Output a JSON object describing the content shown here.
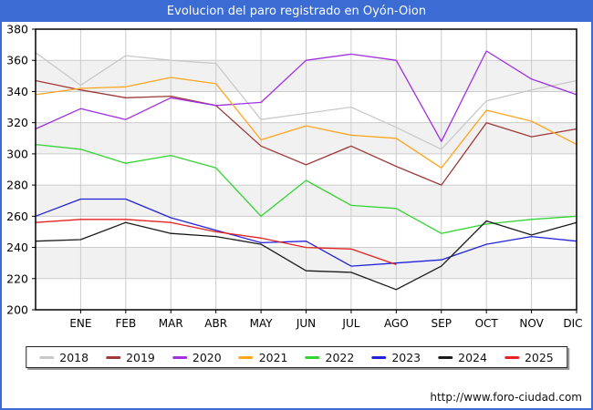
{
  "window": {
    "title": "Evolucion del paro registrado en Oyón-Oion",
    "footer_url": "http://www.foro-ciudad.com"
  },
  "chart_data": {
    "type": "line",
    "title": "Evolucion del paro registrado en Oyón-Oion",
    "xlabel": "",
    "ylabel": "",
    "x_labels": [
      "ENE",
      "FEB",
      "MAR",
      "ABR",
      "MAY",
      "JUN",
      "JUL",
      "AGO",
      "SEP",
      "OCT",
      "NOV",
      "DIC"
    ],
    "ylim": [
      200,
      380
    ],
    "y_ticks": [
      380,
      360,
      340,
      320,
      300,
      280,
      260,
      240,
      220,
      200
    ],
    "grid": true,
    "legend_position": "bottom",
    "point_note": "first value of each series is drawn on the y-axis (previous December), followed by ENE..DIC",
    "series": [
      {
        "name": "2018",
        "color": "#c9c9c9",
        "values": [
          365,
          344,
          363,
          360,
          358,
          322,
          326,
          330,
          317,
          303,
          334,
          341,
          347
        ]
      },
      {
        "name": "2019",
        "color": "#a03a3a",
        "values": [
          347,
          341,
          336,
          337,
          331,
          305,
          293,
          305,
          292,
          280,
          320,
          311,
          316
        ]
      },
      {
        "name": "2020",
        "color": "#a030e0",
        "values": [
          316,
          329,
          322,
          336,
          331,
          333,
          360,
          364,
          360,
          308,
          366,
          348,
          338
        ]
      },
      {
        "name": "2021",
        "color": "#ffa520",
        "values": [
          338,
          342,
          343,
          349,
          345,
          309,
          318,
          312,
          310,
          291,
          328,
          321,
          306
        ]
      },
      {
        "name": "2022",
        "color": "#33d433",
        "values": [
          306,
          303,
          294,
          299,
          291,
          260,
          283,
          267,
          265,
          249,
          255,
          258,
          260
        ]
      },
      {
        "name": "2023",
        "color": "#2222dd",
        "values": [
          260,
          271,
          271,
          259,
          251,
          243,
          244,
          228,
          230,
          232,
          242,
          247,
          244
        ]
      },
      {
        "name": "2024",
        "color": "#1a1a1a",
        "values": [
          244,
          245,
          256,
          249,
          247,
          242,
          225,
          224,
          213,
          228,
          257,
          248,
          256
        ]
      },
      {
        "name": "2025",
        "color": "#e62222",
        "values": [
          256,
          258,
          258,
          256,
          250,
          246,
          240,
          239,
          229
        ]
      }
    ],
    "style": {
      "band_color": "#f1f1f1",
      "gridline_color": "#cccccc",
      "axis_color": "#000000",
      "titlebar_color": "#3a6cd3"
    }
  }
}
